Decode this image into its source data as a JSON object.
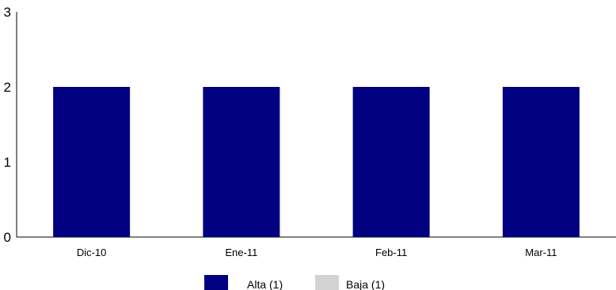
{
  "chart_data": {
    "type": "bar",
    "categories": [
      "Dic-10",
      "Ene-11",
      "Feb-11",
      "Mar-11"
    ],
    "series": [
      {
        "name": "Alta (1)",
        "values": [
          2,
          2,
          2,
          2
        ],
        "color": "#000080"
      },
      {
        "name": "Baja (1)",
        "values": [
          0,
          0,
          0,
          0
        ],
        "color": "#d3d3d3"
      }
    ],
    "ylim": [
      0,
      3
    ],
    "yticks": [
      0,
      1,
      2,
      3
    ],
    "grid": false,
    "legend": "bottom-center"
  }
}
